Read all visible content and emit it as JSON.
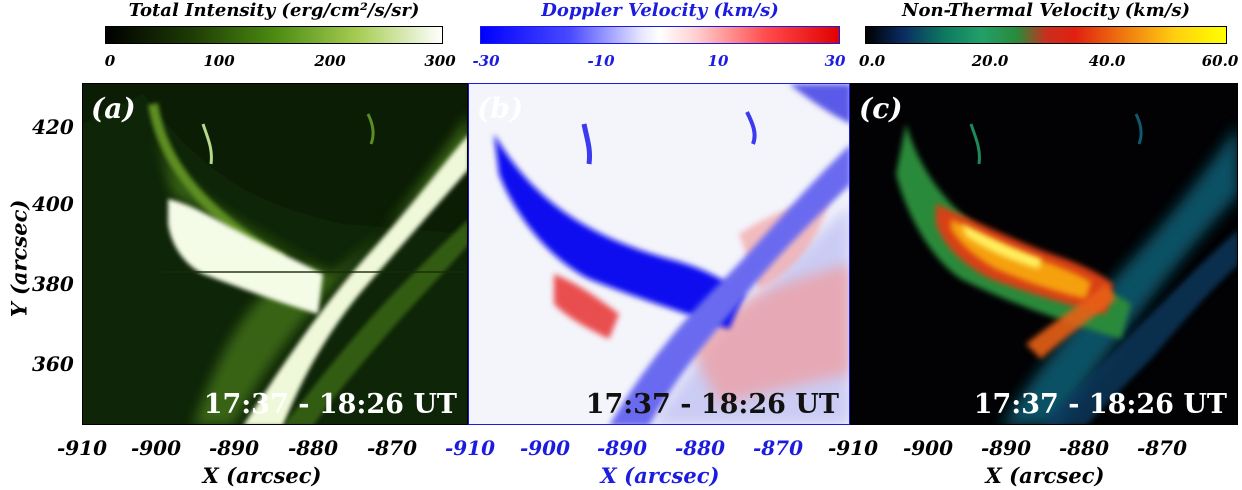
{
  "colorbars": [
    {
      "title": "Total Intensity (erg/cm²/s/sr)",
      "title_color": "#000000",
      "ticks": [
        "0",
        "100",
        "200",
        "300"
      ],
      "tick_color": "#000000"
    },
    {
      "title": "Doppler Velocity (km/s)",
      "title_color": "#1c1ce0",
      "ticks": [
        "-30",
        "-10",
        "10",
        "30"
      ],
      "tick_color": "#1c1ce0"
    },
    {
      "title": "Non-Thermal Velocity (km/s)",
      "title_color": "#000000",
      "ticks": [
        "0.0",
        "20.0",
        "40.0",
        "60.0"
      ],
      "tick_color": "#000000"
    }
  ],
  "panels": [
    {
      "label": "(a)",
      "time": "17:37 - 18:26 UT",
      "time_color": "#ffffff"
    },
    {
      "label": "(b)",
      "time": "17:37 - 18:26 UT",
      "time_color": "#111111"
    },
    {
      "label": "(c)",
      "time": "17:37 - 18:26 UT",
      "time_color": "#ffffff"
    }
  ],
  "x_axis": {
    "panel_a_ticks": [
      "-910",
      "-900",
      "-890",
      "-880",
      "-870"
    ],
    "panel_b_ticks": [
      "-910",
      "-900",
      "-890",
      "-880",
      "-870",
      "-910"
    ],
    "panel_c_ticks": [
      "-900",
      "-890",
      "-880",
      "-870"
    ],
    "label": "X (arcsec)",
    "color_black": "#000000",
    "color_blue": "#1c1ce0"
  },
  "y_axis": {
    "ticks": [
      "420",
      "400",
      "380",
      "360"
    ],
    "label": "Y (arcsec)"
  }
}
